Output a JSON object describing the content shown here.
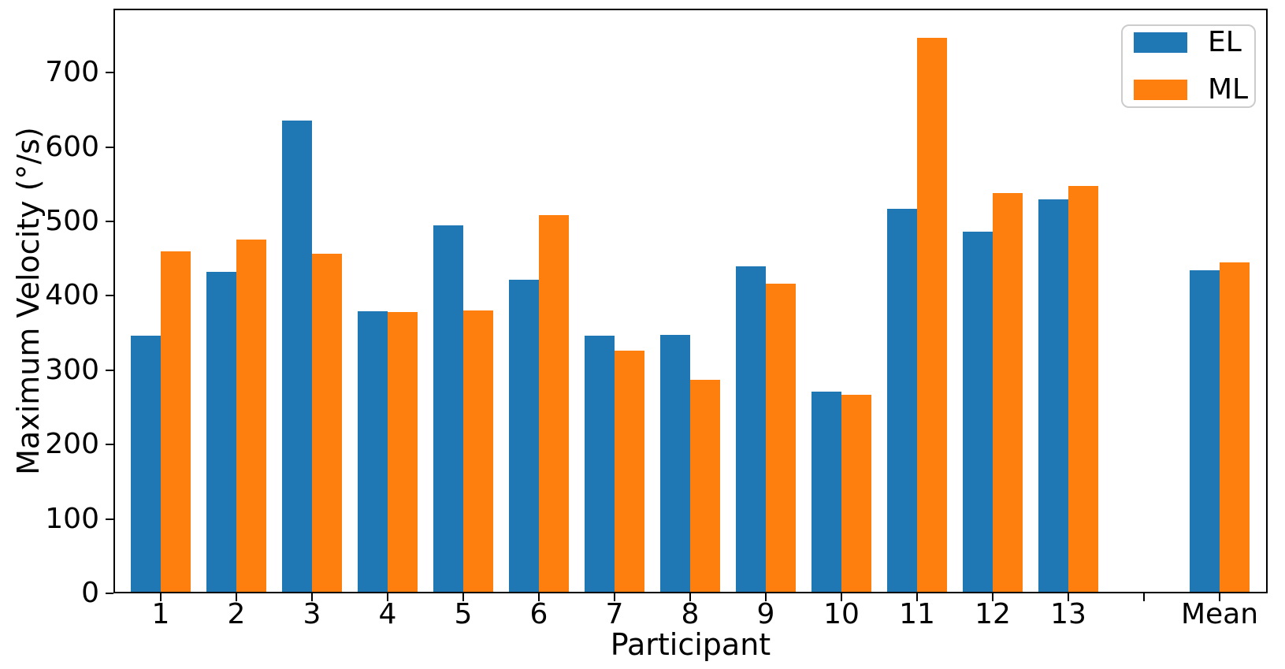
{
  "chart_data": {
    "type": "bar",
    "title": "",
    "xlabel": "Participant",
    "ylabel": "Maximum Velocity (°/s)",
    "categories": [
      "1",
      "2",
      "3",
      "4",
      "5",
      "6",
      "7",
      "8",
      "9",
      "10",
      "11",
      "12",
      "13",
      "Mean"
    ],
    "series": [
      {
        "name": "EL",
        "color": "#1f77b4",
        "values": [
          346,
          432,
          636,
          379,
          495,
          422,
          346,
          347,
          440,
          271,
          517,
          486,
          530,
          434
        ]
      },
      {
        "name": "ML",
        "color": "#ff7f0e",
        "values": [
          460,
          476,
          457,
          378,
          380,
          508,
          326,
          287,
          416,
          267,
          747,
          538,
          548,
          445
        ]
      }
    ],
    "ylim": [
      0,
      786
    ],
    "yticks": [
      0,
      100,
      200,
      300,
      400,
      500,
      600,
      700
    ],
    "grid": false,
    "gap_before_last_category": true,
    "legend": {
      "position": "upper-right"
    }
  }
}
